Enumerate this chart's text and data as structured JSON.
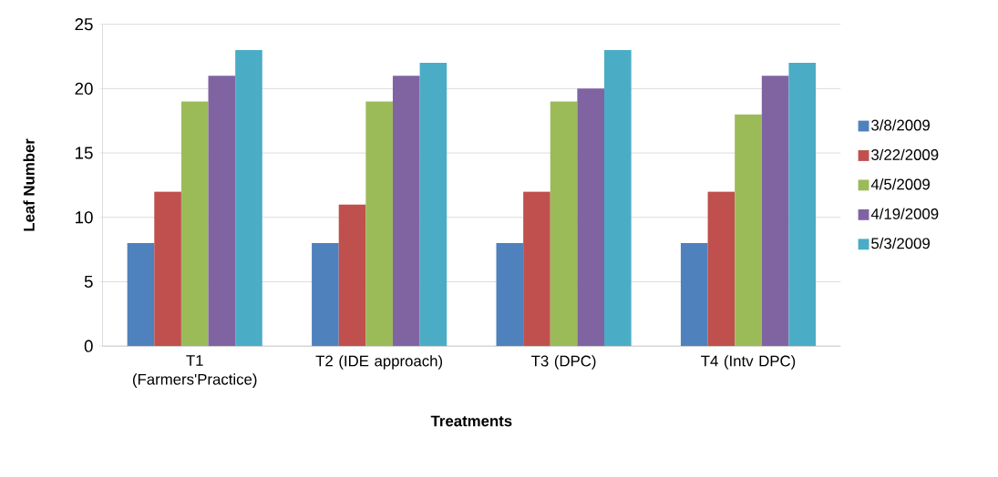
{
  "chart_data": {
    "type": "bar",
    "xlabel": "Treatments",
    "ylabel": "Leaf Number",
    "categories": [
      "T1 (Farmers'Practice)",
      "T2 (IDE approach)",
      "T3 (DPC)",
      "T4 (Intv DPC)"
    ],
    "series": [
      {
        "name": "3/8/2009",
        "color": "#4f81bd",
        "values": [
          8,
          8,
          8,
          8
        ]
      },
      {
        "name": "3/22/2009",
        "color": "#c0504d",
        "values": [
          12,
          11,
          12,
          12
        ]
      },
      {
        "name": "4/5/2009",
        "color": "#9bbb59",
        "values": [
          19,
          19,
          19,
          18
        ]
      },
      {
        "name": "4/19/2009",
        "color": "#8064a2",
        "values": [
          21,
          21,
          20,
          21
        ]
      },
      {
        "name": "5/3/2009",
        "color": "#4bacc6",
        "values": [
          23,
          22,
          23,
          22
        ]
      }
    ],
    "ylim": [
      0,
      25
    ],
    "yticks": [
      0,
      5,
      10,
      15,
      20,
      25
    ],
    "grid": "y",
    "legend": "right"
  }
}
